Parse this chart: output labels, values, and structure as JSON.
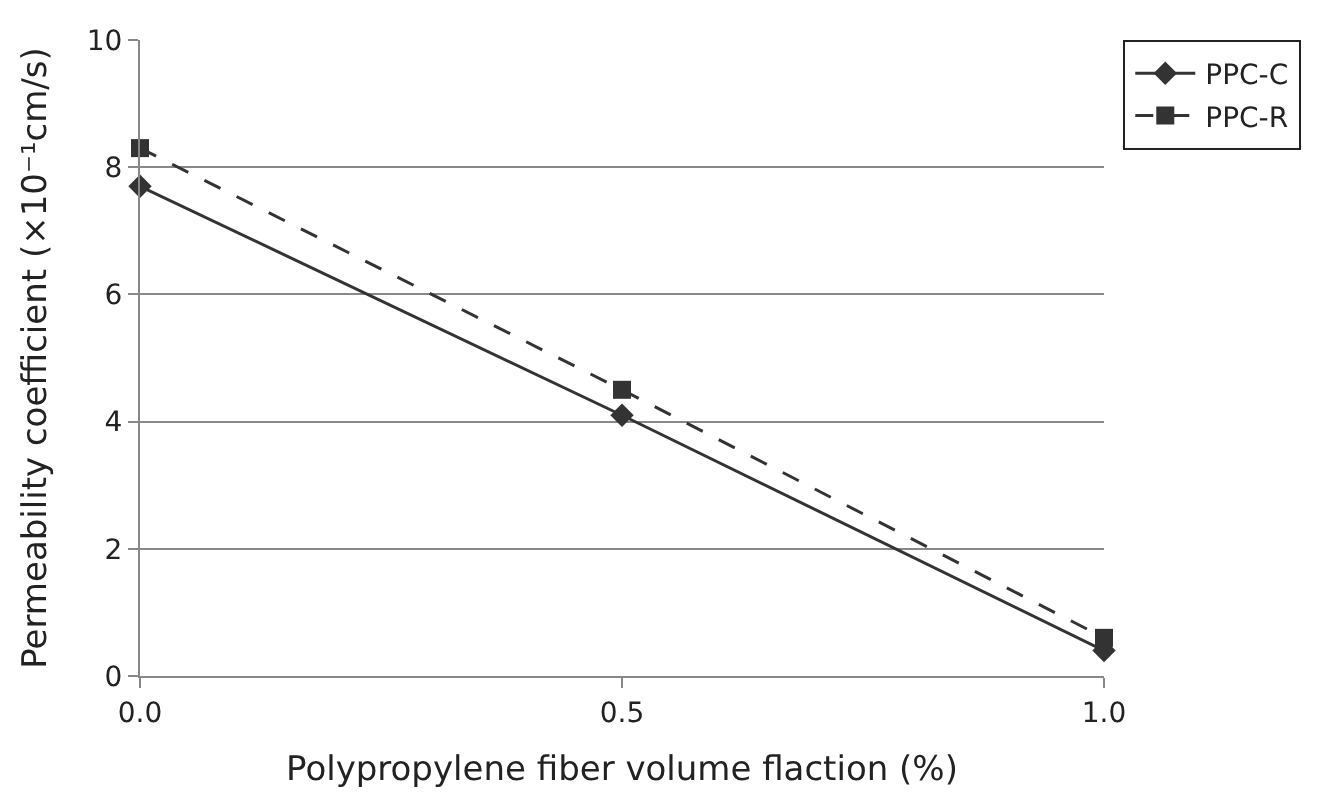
{
  "chart_data": {
    "type": "line",
    "xlabel": "Polypropylene fiber volume flaction (%)",
    "ylabel": "Permeability coefficient (×10⁻¹cm/s)",
    "x": [
      0.0,
      0.5,
      1.0
    ],
    "series": [
      {
        "name": "PPC-C",
        "color": "#333333",
        "values": [
          7.7,
          4.1,
          0.4
        ],
        "marker": "diamond",
        "line_style": "solid"
      },
      {
        "name": "PPC-R",
        "color": "#333333",
        "values": [
          8.3,
          4.5,
          0.6
        ],
        "marker": "square",
        "line_style": "dashed"
      }
    ],
    "xlim": [
      0,
      1
    ],
    "xticks": [
      {
        "value": 0,
        "label": "0.0"
      },
      {
        "value": 0.5,
        "label": "0.5"
      },
      {
        "value": 1,
        "label": "1.0"
      }
    ],
    "ylim": [
      0,
      10
    ],
    "yticks": [
      0,
      2,
      4,
      6,
      8,
      10
    ],
    "grid": "y",
    "legend": "top right"
  }
}
